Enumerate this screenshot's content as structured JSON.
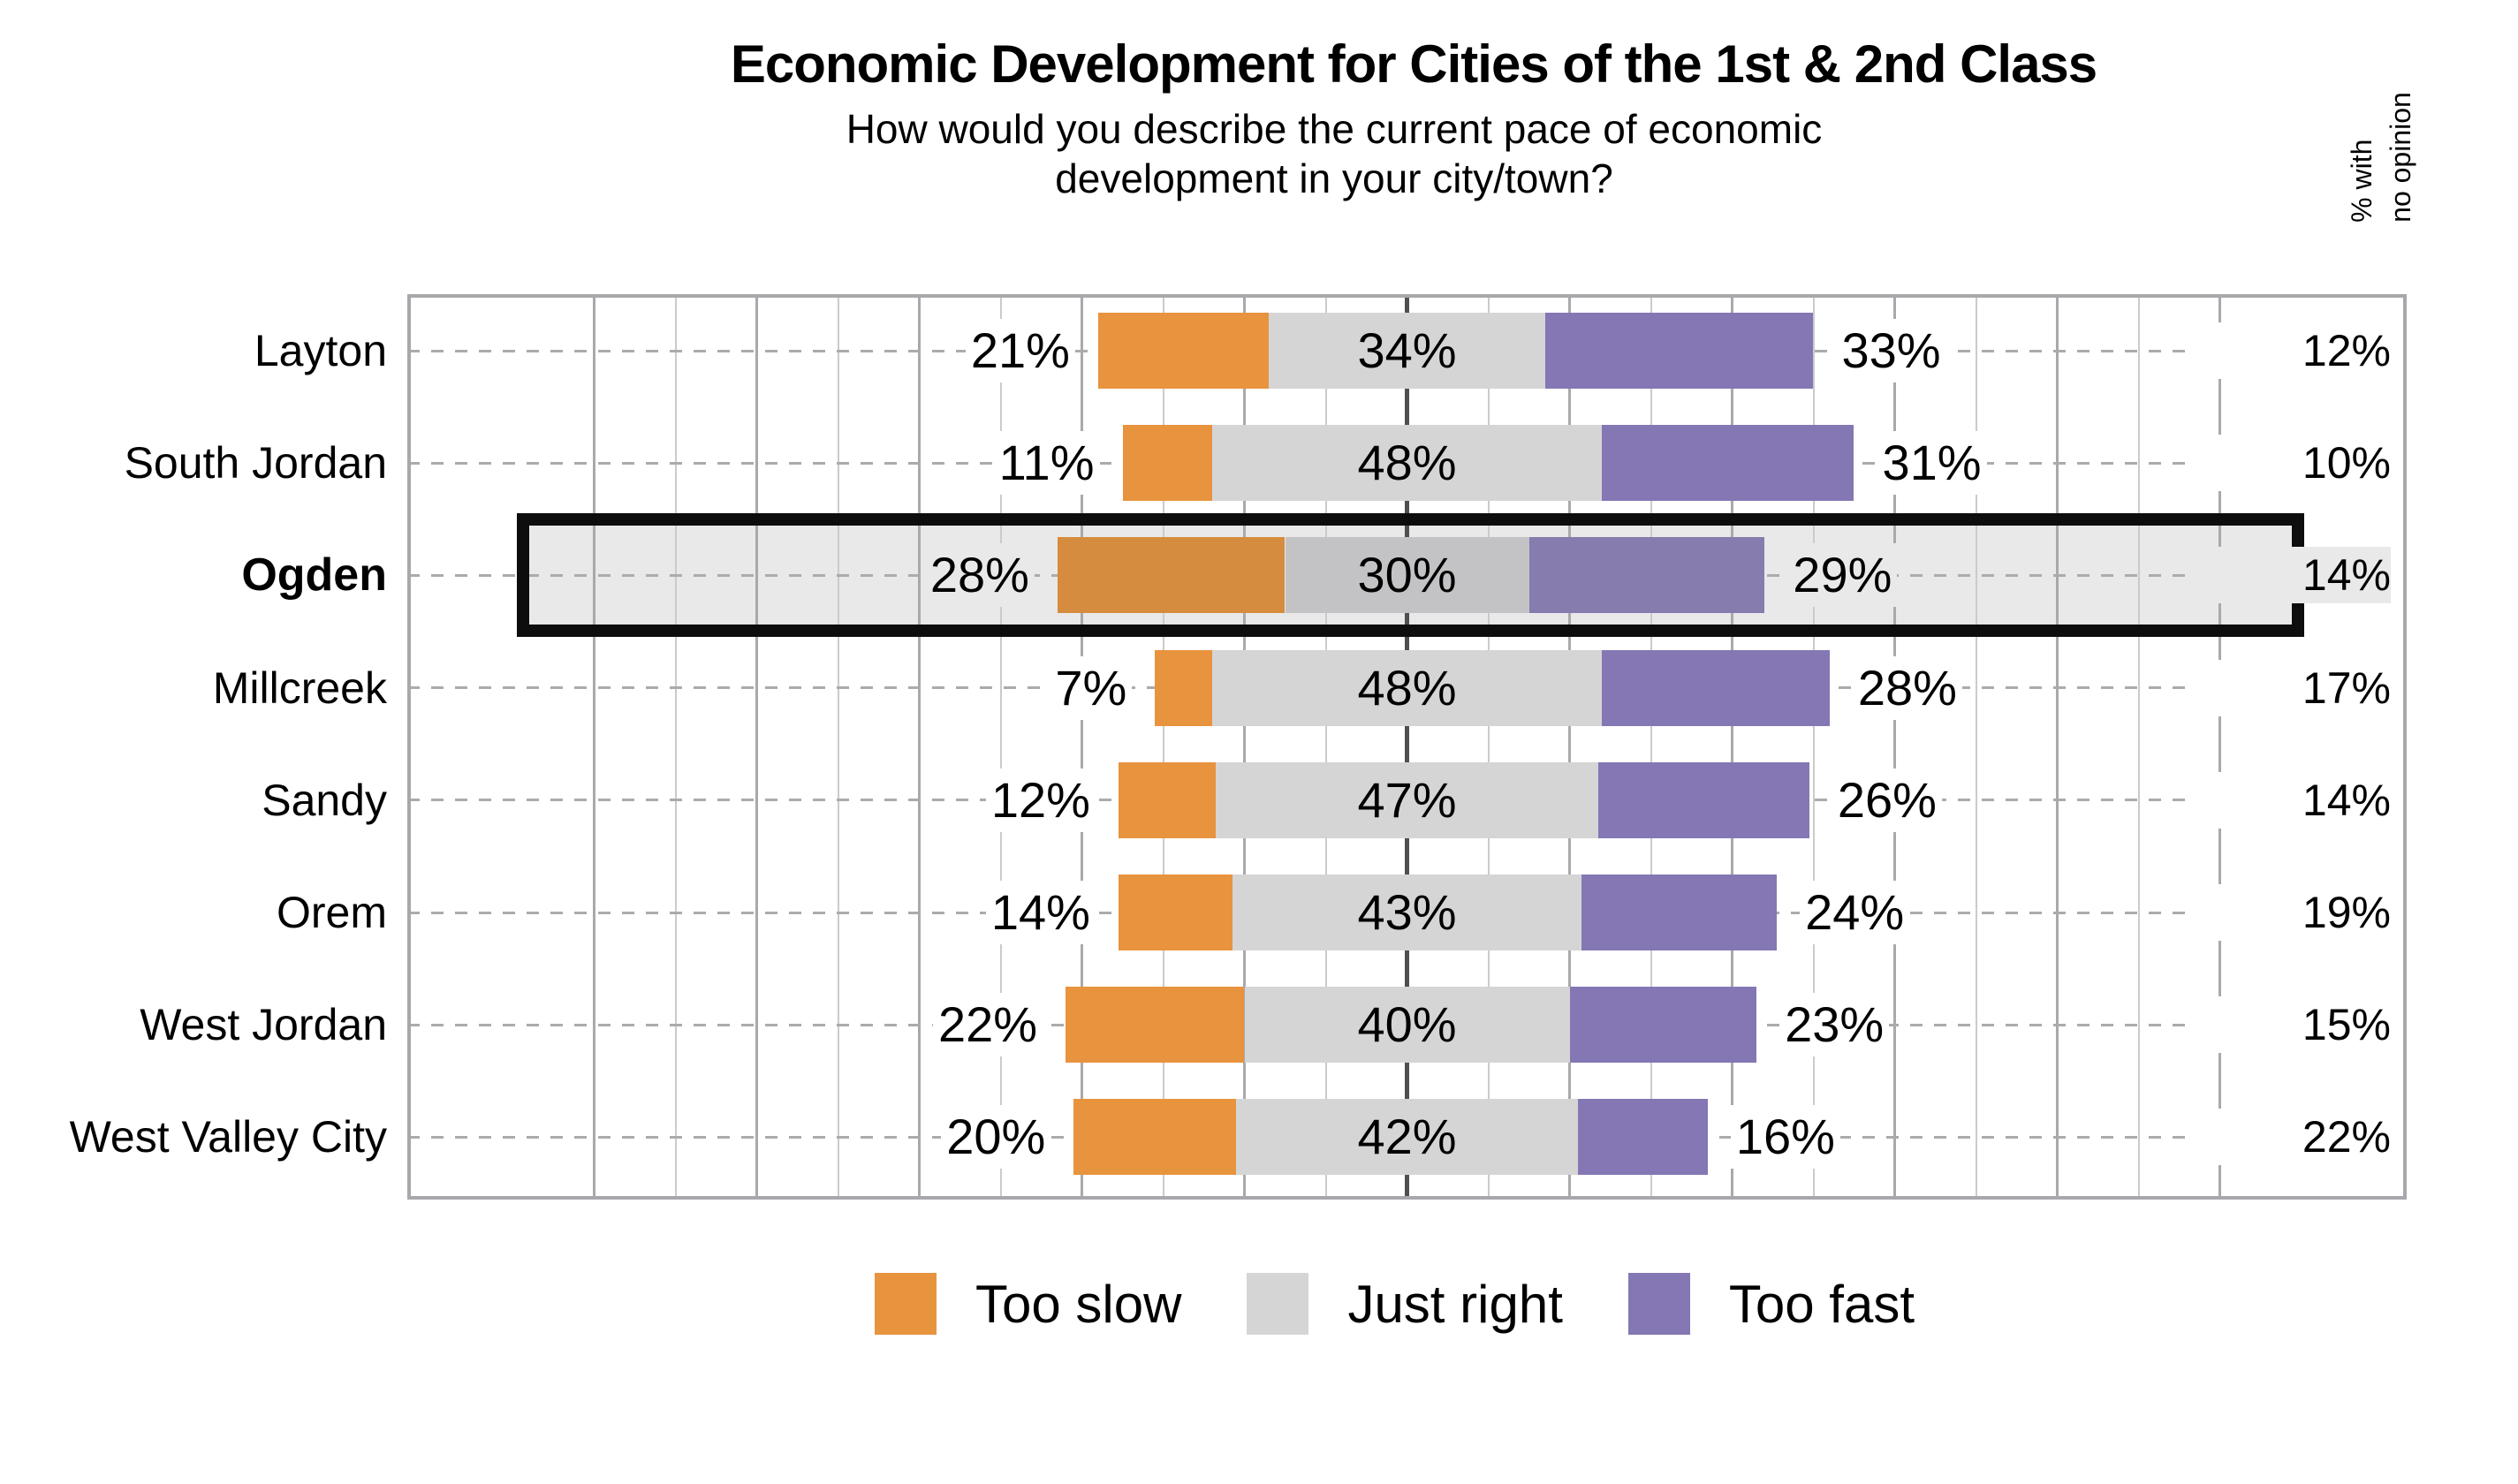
{
  "header": {
    "title": "Economic Development for Cities of the 1st & 2nd Class",
    "subtitle_line1": "How would you describe the current pace of economic",
    "subtitle_line2": "development in your city/town?"
  },
  "right_column_header": {
    "line1": "% with",
    "line2": "no opinion"
  },
  "legend": {
    "items": [
      {
        "label": "Too slow",
        "color": "#E8933E"
      },
      {
        "label": "Just right",
        "color": "#D5D5D6"
      },
      {
        "label": "Too fast",
        "color": "#8477B4"
      }
    ]
  },
  "highlight": {
    "city": "Ogden",
    "fill_color": "#E9E9E9",
    "border_color": "#0D0D0D"
  },
  "colors": {
    "too_slow": "#E8933E",
    "just_right": "#D5D5D6",
    "too_fast": "#8477B4",
    "too_slow_highlighted": "#D68C3E",
    "just_right_highlighted": "#C3C3C5",
    "too_fast_highlighted": "#867CAD",
    "center_axis_line": "#4F4F52",
    "major_gridline": "#A9A9AD",
    "minor_gridline": "#CBCBCE",
    "plot_border": "#A8A8AC",
    "row_dash_line": "#ABABAB",
    "background": "#FFFFFF",
    "text": "#000000"
  },
  "chart_data": {
    "type": "bar",
    "variant": "diverging-stacked-horizontal",
    "title": "Economic Development for Cities of the 1st & 2nd Class",
    "subtitle": "How would you describe the current pace of economic development in your city/town?",
    "categories": [
      "Layton",
      "South Jordan",
      "Ogden",
      "Millcreek",
      "Sandy",
      "Orem",
      "West Jordan",
      "West Valley City"
    ],
    "series": [
      {
        "name": "Too slow",
        "values": [
          21,
          11,
          28,
          7,
          12,
          14,
          22,
          20
        ]
      },
      {
        "name": "Just right",
        "values": [
          34,
          48,
          30,
          48,
          47,
          43,
          40,
          42
        ]
      },
      {
        "name": "Too fast",
        "values": [
          33,
          31,
          29,
          28,
          26,
          24,
          23,
          16
        ]
      }
    ],
    "no_opinion": {
      "header": "% with no opinion",
      "values": [
        12,
        10,
        14,
        17,
        14,
        19,
        15,
        22
      ]
    },
    "axis": {
      "center": 0,
      "unit": "%",
      "gridline_step_pct": 10,
      "major_gridline_step_pct": 20,
      "range_pct": [
        -123,
        123
      ],
      "grid": "on"
    },
    "legend_position": "bottom",
    "highlighted_category": "Ogden",
    "rows": [
      {
        "city": "Layton",
        "slow": 21,
        "just": 34,
        "fast": 33,
        "no_opinion": 12,
        "slow_label": "21%",
        "just_label": "34%",
        "fast_label": "33%",
        "no_opinion_label": "12%",
        "highlighted": false
      },
      {
        "city": "South Jordan",
        "slow": 11,
        "just": 48,
        "fast": 31,
        "no_opinion": 10,
        "slow_label": "11%",
        "just_label": "48%",
        "fast_label": "31%",
        "no_opinion_label": "10%",
        "highlighted": false
      },
      {
        "city": "Ogden",
        "slow": 28,
        "just": 30,
        "fast": 29,
        "no_opinion": 14,
        "slow_label": "28%",
        "just_label": "30%",
        "fast_label": "29%",
        "no_opinion_label": "14%",
        "highlighted": true
      },
      {
        "city": "Millcreek",
        "slow": 7,
        "just": 48,
        "fast": 28,
        "no_opinion": 17,
        "slow_label": "7%",
        "just_label": "48%",
        "fast_label": "28%",
        "no_opinion_label": "17%",
        "highlighted": false
      },
      {
        "city": "Sandy",
        "slow": 12,
        "just": 47,
        "fast": 26,
        "no_opinion": 14,
        "slow_label": "12%",
        "just_label": "47%",
        "fast_label": "26%",
        "no_opinion_label": "14%",
        "highlighted": false
      },
      {
        "city": "Orem",
        "slow": 14,
        "just": 43,
        "fast": 24,
        "no_opinion": 19,
        "slow_label": "14%",
        "just_label": "43%",
        "fast_label": "24%",
        "no_opinion_label": "19%",
        "highlighted": false
      },
      {
        "city": "West Jordan",
        "slow": 22,
        "just": 40,
        "fast": 23,
        "no_opinion": 15,
        "slow_label": "22%",
        "just_label": "40%",
        "fast_label": "23%",
        "no_opinion_label": "15%",
        "highlighted": false
      },
      {
        "city": "West Valley City",
        "slow": 20,
        "just": 42,
        "fast": 16,
        "no_opinion": 22,
        "slow_label": "20%",
        "just_label": "42%",
        "fast_label": "16%",
        "no_opinion_label": "22%",
        "highlighted": false
      }
    ]
  }
}
